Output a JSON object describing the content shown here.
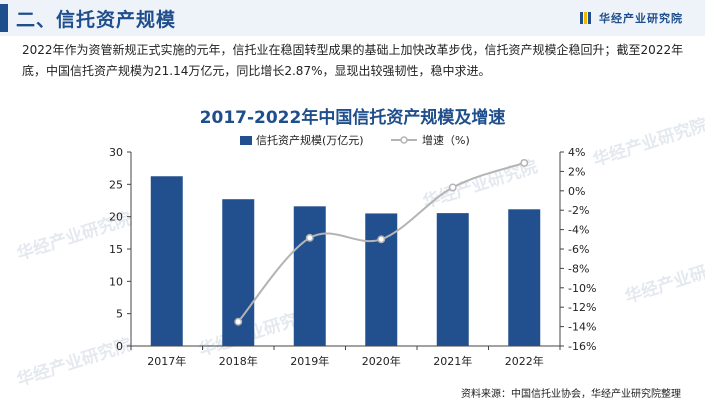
{
  "header": {
    "title": "二、信托资产规模",
    "logo_text": "华经产业研究院"
  },
  "intro": "2022年作为资管新规正式实施的元年，信托业在稳固转型成果的基础上加快改革步伐，信托资产规模企稳回升；截至2022年底，中国信托资产规模为21.14万亿元，同比增长2.87%，显现出较强韧性，稳中求进。",
  "watermark_text": "华经产业研究院",
  "source": "资料来源：中国信托业协会，华经产业研究院整理",
  "colors": {
    "brand": "#1f4e8c",
    "bar": "#22508f",
    "line": "#b4b4b4",
    "header_bg": "#eef3fa"
  },
  "chart_data": {
    "type": "bar",
    "title": "2017-2022年中国信托资产规模及增速",
    "categories": [
      "2017年",
      "2018年",
      "2019年",
      "2020年",
      "2021年",
      "2022年"
    ],
    "series": [
      {
        "name": "信托资产规模(万亿元)",
        "type": "bar",
        "axis": "left",
        "values": [
          26.25,
          22.7,
          21.6,
          20.5,
          20.55,
          21.14
        ]
      },
      {
        "name": "增速（%)",
        "type": "line",
        "axis": "right",
        "values": [
          null,
          -13.5,
          -4.85,
          -5.0,
          0.35,
          2.87
        ]
      }
    ],
    "y_left": {
      "min": 0,
      "max": 30,
      "ticks": [
        "0",
        "5",
        "10",
        "15",
        "20",
        "25",
        "30"
      ]
    },
    "y_right": {
      "min": -16,
      "max": 4,
      "ticks": [
        "-16%",
        "-14%",
        "-12%",
        "-10%",
        "-8%",
        "-6%",
        "-4%",
        "-2%",
        "0%",
        "2%",
        "4%"
      ]
    },
    "legend_position": "top",
    "grid": false
  }
}
